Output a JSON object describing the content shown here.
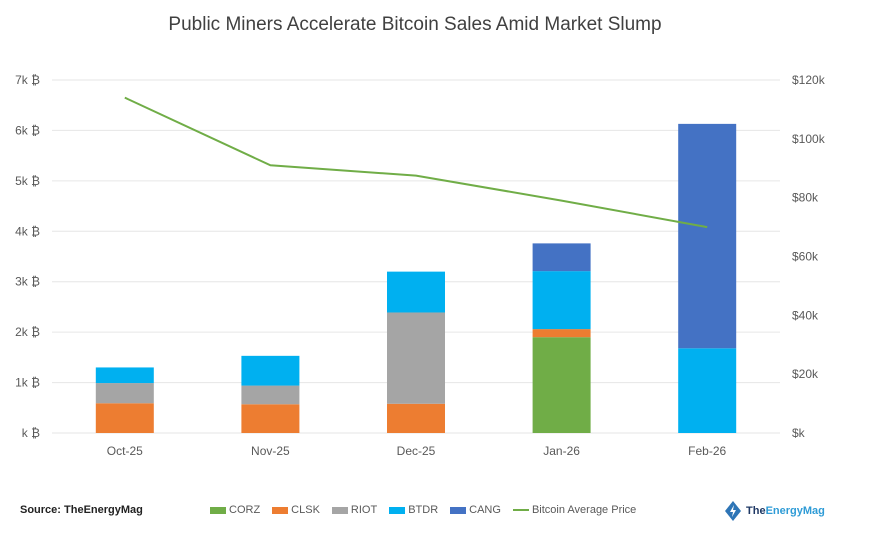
{
  "chart_data": {
    "type": "bar",
    "stacked": true,
    "title": "Public Miners Accelerate Bitcoin Sales Amid Market Slump",
    "categories": [
      "Oct-25",
      "Nov-25",
      "Dec-25",
      "Jan-26",
      "Feb-26"
    ],
    "series": [
      {
        "name": "CORZ",
        "color": "#70ad47",
        "values": [
          0,
          0,
          0,
          1.9,
          0
        ]
      },
      {
        "name": "CLSK",
        "color": "#ed7d31",
        "values": [
          0.59,
          0.57,
          0.58,
          0.16,
          0
        ]
      },
      {
        "name": "RIOT",
        "color": "#a5a5a5",
        "values": [
          0.4,
          0.37,
          1.81,
          0,
          0
        ]
      },
      {
        "name": "BTDR",
        "color": "#00b0f0",
        "values": [
          0.31,
          0.59,
          0.81,
          1.15,
          1.68
        ]
      },
      {
        "name": "CANG",
        "color": "#4472c4",
        "values": [
          0,
          0,
          0,
          0.55,
          4.45
        ]
      }
    ],
    "line_series": {
      "name": "Bitcoin Average Price",
      "color": "#70ad47",
      "axis": "right",
      "values": [
        114,
        91,
        87.5,
        79,
        70
      ]
    },
    "left_axis": {
      "ylim": [
        0,
        7
      ],
      "tick_labels": [
        "k ₿",
        "1k ₿",
        "2k ₿",
        "3k ₿",
        "4k ₿",
        "5k ₿",
        "6k ₿",
        "7k ₿"
      ]
    },
    "right_axis": {
      "ylim": [
        0,
        120
      ],
      "tick_labels": [
        "$k",
        "$20k",
        "$40k",
        "$60k",
        "$80k",
        "$100k",
        "$120k"
      ]
    },
    "grid": true,
    "legend_position": "bottom"
  },
  "footer": {
    "source": "Source: TheEnergyMag",
    "logo_a": "The",
    "logo_b": "EnergyMag"
  }
}
